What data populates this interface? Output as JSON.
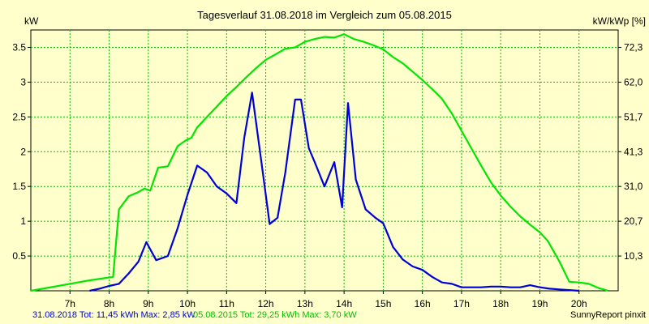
{
  "chart_data": {
    "type": "line",
    "title": "Tagesverlauf 31.08.2018 im Vergleich zum 05.08.2015",
    "ylabel_left": "kW",
    "ylabel_right": "kW/kWp [%]",
    "xlim": [
      6.0,
      21.0
    ],
    "ylim": [
      0,
      3.75
    ],
    "x_ticks": [
      7,
      8,
      9,
      10,
      11,
      12,
      13,
      14,
      15,
      16,
      17,
      18,
      19,
      20
    ],
    "x_tick_labels": [
      "7h",
      "8h",
      "9h",
      "10h",
      "11h",
      "12h",
      "13h",
      "14h",
      "15h",
      "16h",
      "17h",
      "18h",
      "19h",
      "20h"
    ],
    "y_ticks": [
      0.5,
      1,
      1.5,
      2,
      2.5,
      3,
      3.5
    ],
    "y_tick_labels": [
      "0.5",
      "1",
      "1.5",
      "2",
      "2.5",
      "3",
      "3.5"
    ],
    "y_right_ticks": [
      0.5,
      1,
      1.5,
      2,
      2.5,
      3,
      3.5
    ],
    "y_right_tick_labels": [
      "10,3",
      "20,7",
      "31,0",
      "41,3",
      "51,7",
      "62,0",
      "72,3"
    ],
    "grid": true,
    "legend_position": "bottom-left",
    "series": [
      {
        "name": "05.08.2015",
        "legend_text": "05.08.2015 Tot: 29,25 kWh Max: 3,70 kW",
        "color": "#00e600",
        "x": [
          6.0,
          7.0,
          7.5,
          8.1,
          8.25,
          8.5,
          8.75,
          8.9,
          9.05,
          9.25,
          9.5,
          9.75,
          9.95,
          10.1,
          10.25,
          10.5,
          10.75,
          11.0,
          11.25,
          11.5,
          11.75,
          12.0,
          12.25,
          12.5,
          12.75,
          13.0,
          13.25,
          13.5,
          13.75,
          14.0,
          14.25,
          14.5,
          14.75,
          15.0,
          15.25,
          15.5,
          15.75,
          16.0,
          16.25,
          16.5,
          16.75,
          17.0,
          17.25,
          17.5,
          17.75,
          18.0,
          18.25,
          18.5,
          18.75,
          19.0,
          19.2,
          19.5,
          19.75,
          20.0,
          20.25,
          20.5,
          20.75
        ],
        "y": [
          0.0,
          0.1,
          0.15,
          0.2,
          1.17,
          1.36,
          1.42,
          1.47,
          1.44,
          1.77,
          1.79,
          2.08,
          2.16,
          2.2,
          2.35,
          2.5,
          2.65,
          2.8,
          2.93,
          3.07,
          3.2,
          3.32,
          3.4,
          3.48,
          3.5,
          3.58,
          3.62,
          3.65,
          3.64,
          3.69,
          3.62,
          3.58,
          3.53,
          3.47,
          3.36,
          3.27,
          3.15,
          3.03,
          2.9,
          2.76,
          2.55,
          2.3,
          2.05,
          1.8,
          1.56,
          1.37,
          1.21,
          1.07,
          0.95,
          0.84,
          0.72,
          0.42,
          0.13,
          0.12,
          0.1,
          0.04,
          0.0
        ]
      },
      {
        "name": "31.08.2018",
        "legend_text": "31.08.2018 Tot: 11,45 kWh Max: 2,85 kW",
        "color": "#0000d8",
        "x": [
          7.5,
          7.75,
          8.0,
          8.25,
          8.5,
          8.75,
          8.95,
          9.2,
          9.5,
          9.75,
          10.0,
          10.25,
          10.5,
          10.75,
          11.0,
          11.25,
          11.45,
          11.65,
          11.9,
          12.1,
          12.3,
          12.5,
          12.75,
          12.9,
          13.1,
          13.25,
          13.5,
          13.75,
          13.95,
          14.1,
          14.3,
          14.55,
          14.8,
          15.0,
          15.25,
          15.5,
          15.75,
          16.0,
          16.25,
          16.5,
          16.75,
          17.0,
          17.25,
          17.5,
          17.75,
          18.0,
          18.25,
          18.5,
          18.75,
          19.0,
          19.25,
          19.5,
          19.75,
          20.0
        ],
        "y": [
          0.0,
          0.03,
          0.07,
          0.1,
          0.25,
          0.42,
          0.7,
          0.44,
          0.5,
          0.9,
          1.38,
          1.8,
          1.7,
          1.5,
          1.4,
          1.26,
          2.2,
          2.85,
          1.8,
          0.96,
          1.05,
          1.7,
          2.75,
          2.75,
          2.05,
          1.85,
          1.5,
          1.85,
          1.2,
          2.7,
          1.6,
          1.17,
          1.05,
          0.97,
          0.63,
          0.45,
          0.35,
          0.3,
          0.2,
          0.12,
          0.1,
          0.05,
          0.05,
          0.05,
          0.06,
          0.06,
          0.05,
          0.05,
          0.08,
          0.05,
          0.03,
          0.02,
          0.01,
          0.0
        ]
      }
    ],
    "footer_right": "SunnyReport pinxit"
  }
}
